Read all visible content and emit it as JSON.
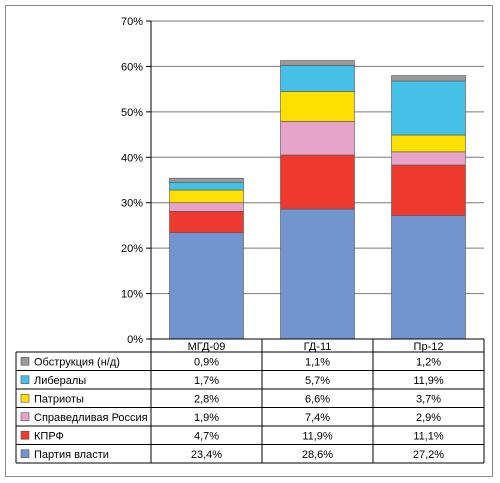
{
  "chart_data": {
    "type": "bar",
    "stacked": true,
    "categories": [
      "МГД-09",
      "ГД-11",
      "Пр-12"
    ],
    "series": [
      {
        "name": "Партия власти",
        "values": [
          23.4,
          28.6,
          27.2
        ],
        "color": "#7294cf",
        "labels": [
          "23,4%",
          "28,6%",
          "27,2%"
        ]
      },
      {
        "name": "КПРФ",
        "values": [
          4.7,
          11.9,
          11.1
        ],
        "color": "#ee3a2e",
        "labels": [
          "4,7%",
          "11,9%",
          "11,1%"
        ]
      },
      {
        "name": "Справедливая Россия",
        "values": [
          1.9,
          7.4,
          2.9
        ],
        "color": "#e6a4cb",
        "labels": [
          "1,9%",
          "7,4%",
          "2,9%"
        ]
      },
      {
        "name": "Патриоты",
        "values": [
          2.8,
          6.6,
          3.7
        ],
        "color": "#fde000",
        "labels": [
          "2,8%",
          "6,6%",
          "3,7%"
        ]
      },
      {
        "name": "Либералы",
        "values": [
          1.7,
          5.7,
          11.9
        ],
        "color": "#45c0e6",
        "labels": [
          "1,7%",
          "5,7%",
          "11,9%"
        ]
      },
      {
        "name": "Обструкция (н/д)",
        "values": [
          0.9,
          1.1,
          1.2
        ],
        "color": "#9a9a9c",
        "labels": [
          "0,9%",
          "1,1%",
          "1,2%"
        ]
      }
    ],
    "yticks": [
      "0%",
      "10%",
      "20%",
      "30%",
      "40%",
      "50%",
      "60%",
      "70%"
    ],
    "ylim": [
      0,
      70
    ],
    "grid": true,
    "legend": "data-table below plot"
  }
}
